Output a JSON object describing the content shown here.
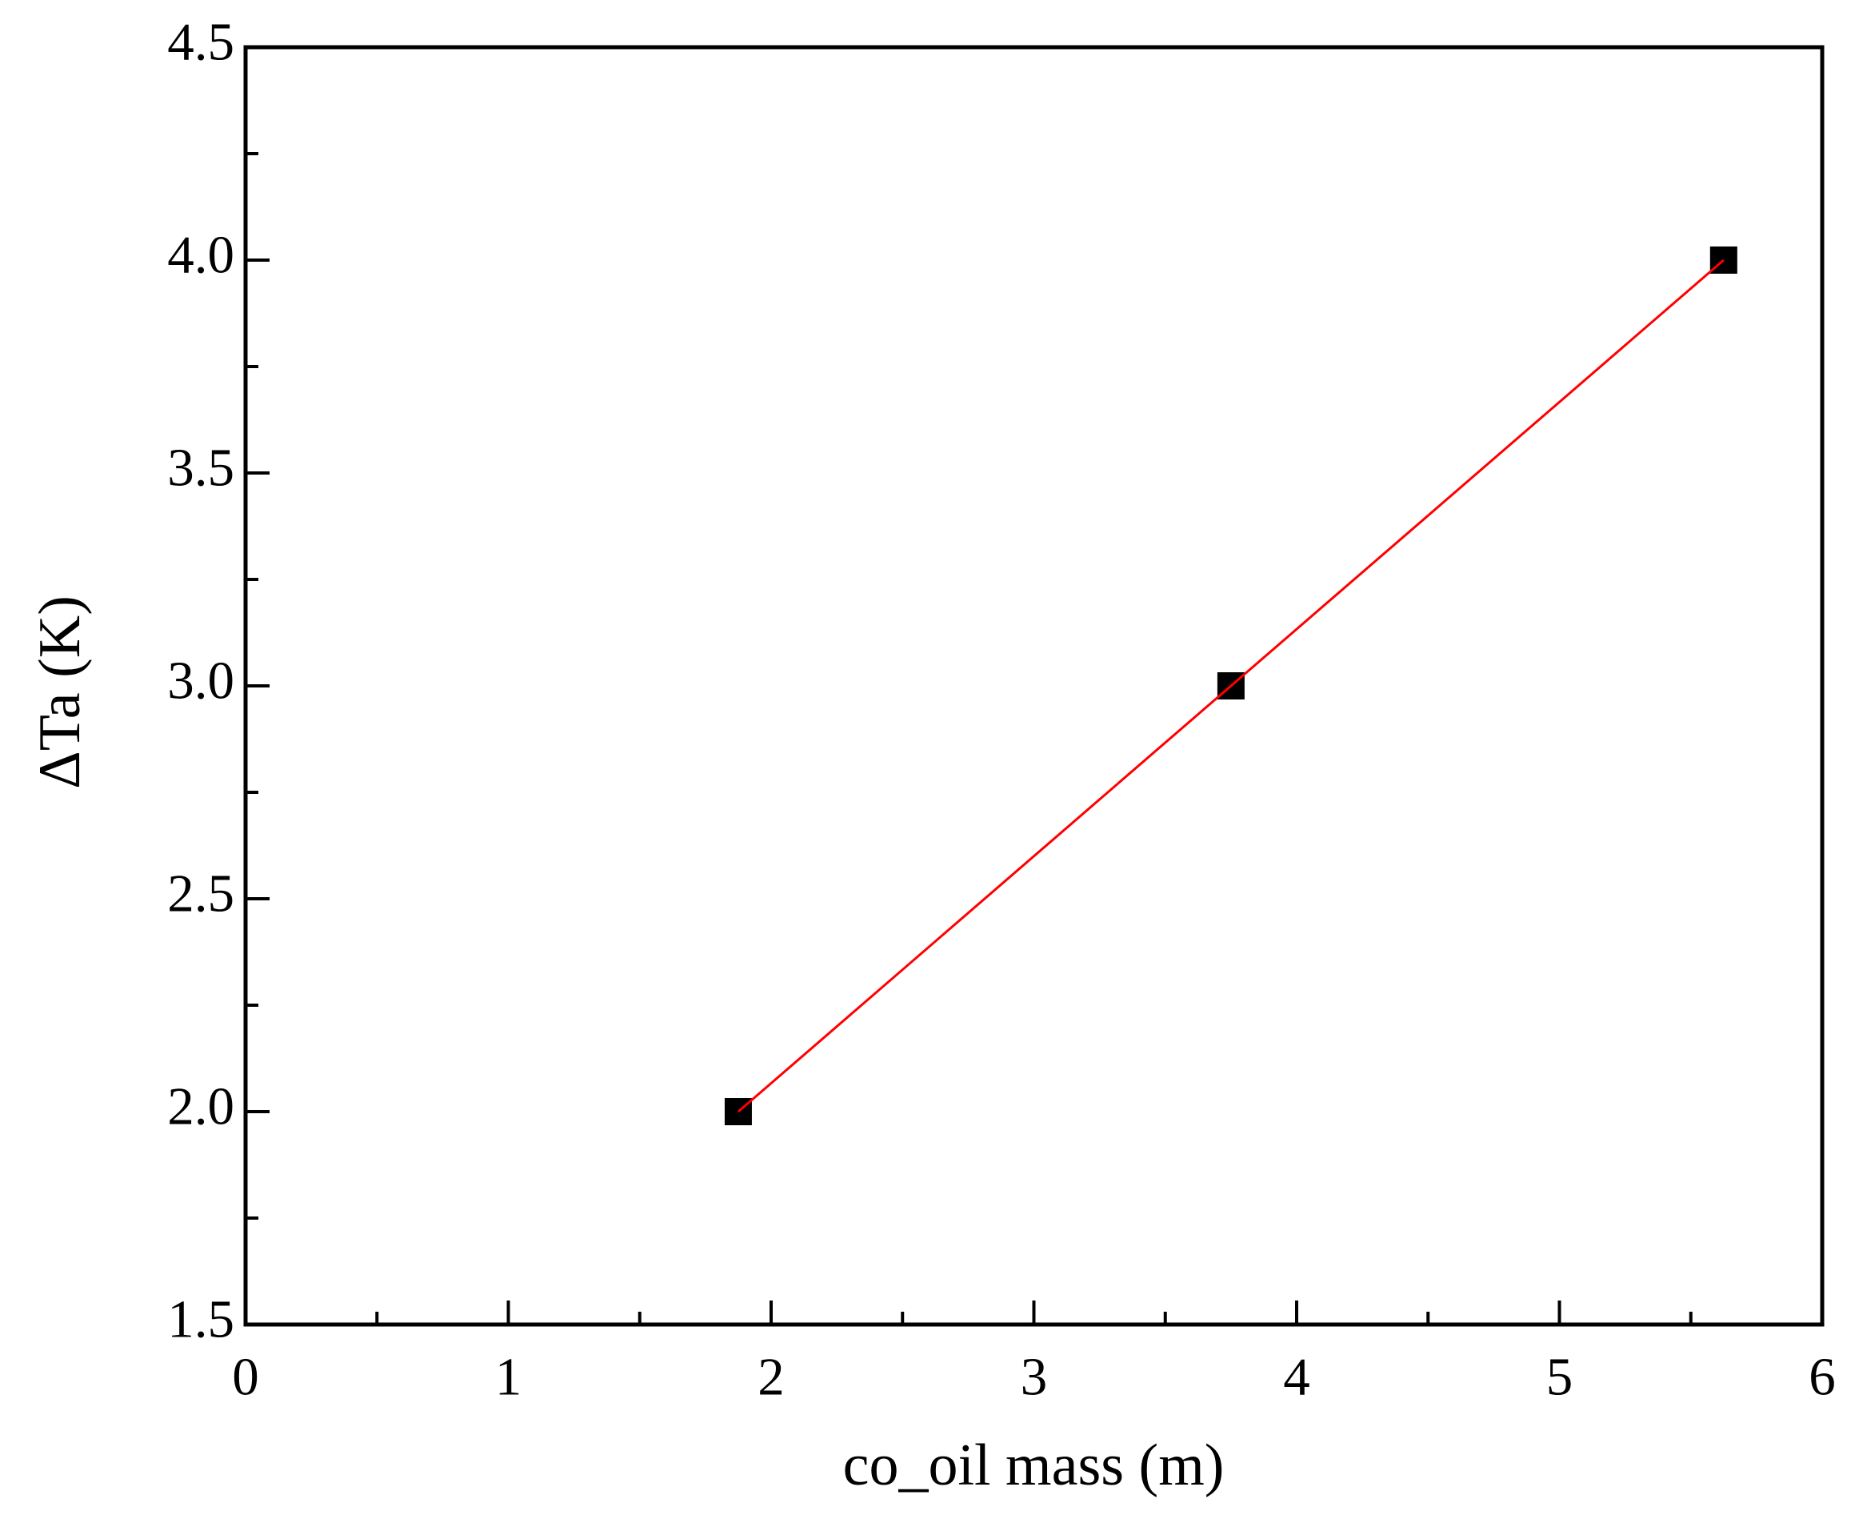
{
  "chart_data": {
    "type": "scatter",
    "xlabel": "co_oil mass (m)",
    "ylabel": "ΔTa (K)",
    "xlim": [
      0,
      6
    ],
    "xticks": [
      0,
      1,
      2,
      3,
      4,
      5,
      6
    ],
    "xminorticks": [
      0.5,
      1.5,
      2.5,
      3.5,
      4.5,
      5.5
    ],
    "ylim": [
      1.5,
      4.5
    ],
    "yticks": [
      1.5,
      {
        "value": 2,
        "label": "2.0"
      },
      2.5,
      {
        "value": 3,
        "label": "3.0"
      },
      3.5,
      {
        "value": 4,
        "label": "4.0"
      },
      4.5
    ],
    "yminorticks": [
      1.75,
      2.25,
      2.75,
      3.25,
      3.75,
      4.25
    ],
    "grid": false,
    "series": [
      {
        "style": "marker",
        "marker": "square",
        "color": "#000000",
        "x": [
          1.875,
          3.75,
          5.625
        ],
        "values": [
          2,
          3,
          4
        ]
      },
      {
        "style": "line",
        "color": "#ff0000",
        "x": [
          1.875,
          5.625
        ],
        "values": [
          2,
          4
        ]
      }
    ]
  }
}
